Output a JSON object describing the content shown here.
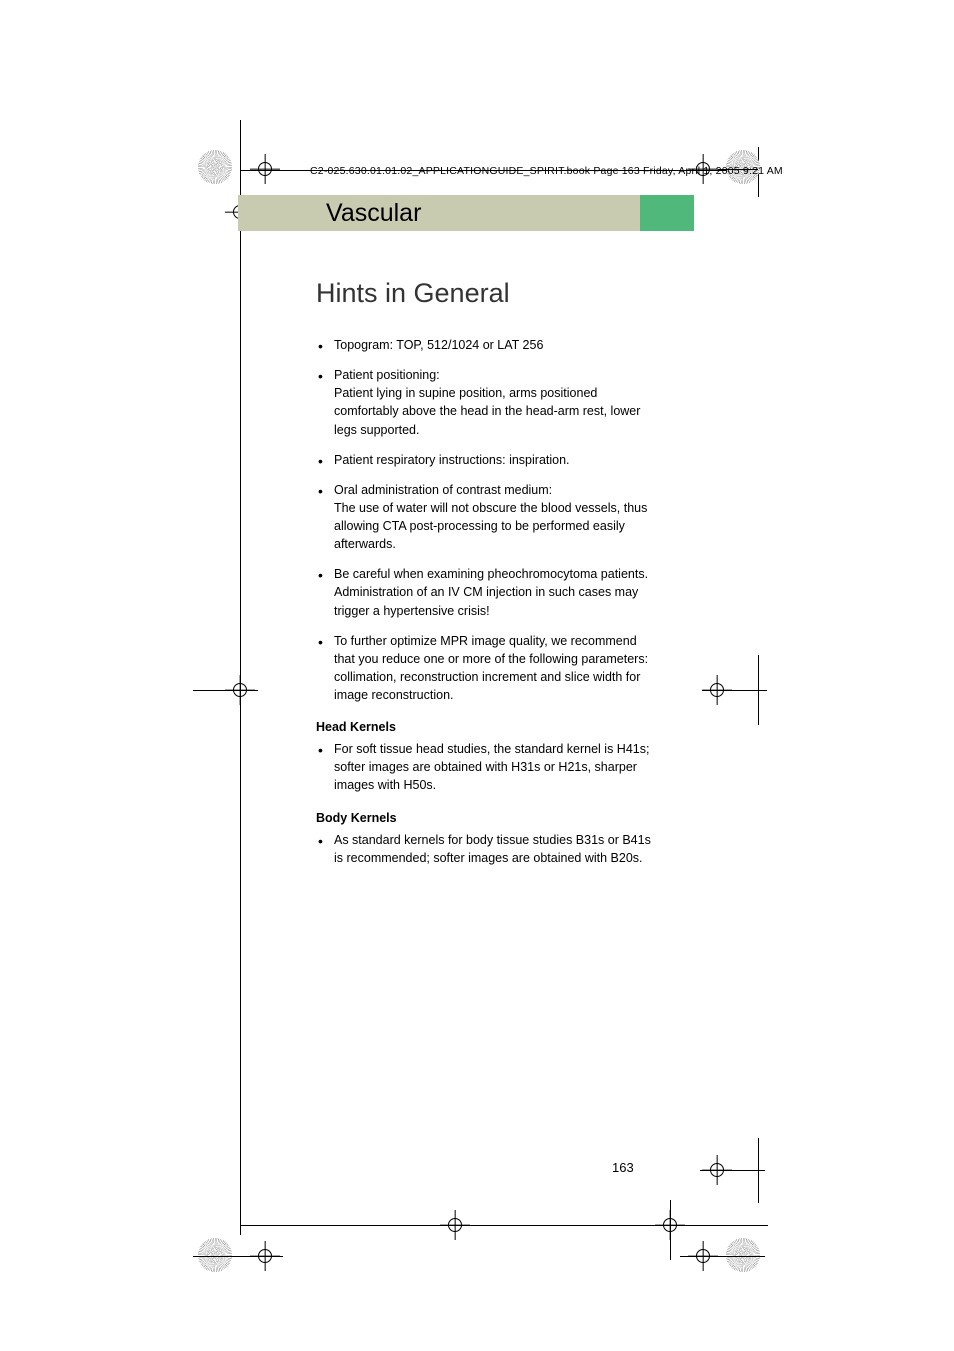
{
  "header": {
    "path": "C2-025.630.01.01.02_APPLICATIONGUIDE_SPIRIT.book  Page 163  Friday, April 1, 2005  9:21 AM"
  },
  "section": {
    "title": "Vascular"
  },
  "page": {
    "title": "Hints in General",
    "number": "163"
  },
  "bullets_main": [
    "Topogram: TOP, 512/1024 or LAT 256",
    "Patient positioning:\nPatient lying in supine position, arms positioned comfortably above the head in the head-arm rest, lower legs supported.",
    "Patient respiratory instructions: inspiration.",
    "Oral administration of contrast medium:\nThe use of water will not obscure the blood vessels, thus allowing CTA post-processing to be performed easily afterwards.",
    "Be careful when examining pheochromocytoma patients. Administration of an IV CM injection in such cases may trigger a hypertensive crisis!",
    "To further optimize MPR image quality, we recommend that you reduce one or more of the following parameters: collimation, reconstruction increment and slice width for image reconstruction."
  ],
  "subsections": [
    {
      "heading": "Head Kernels",
      "bullets": [
        "For soft tissue head studies, the standard kernel is H41s; softer images are obtained with H31s or H21s, sharper images with H50s."
      ]
    },
    {
      "heading": "Body Kernels",
      "bullets": [
        "As standard kernels for body tissue studies B31s or B41s is recommended; softer images are obtained with B20s."
      ]
    }
  ],
  "colors": {
    "band": "#c9cbb0",
    "tab": "#4fb87a",
    "text": "#000000",
    "bg": "#ffffff"
  },
  "typography": {
    "body_fontsize": 12.5,
    "section_title_fontsize": 25,
    "page_title_fontsize": 27,
    "header_fontsize": 10.5
  }
}
